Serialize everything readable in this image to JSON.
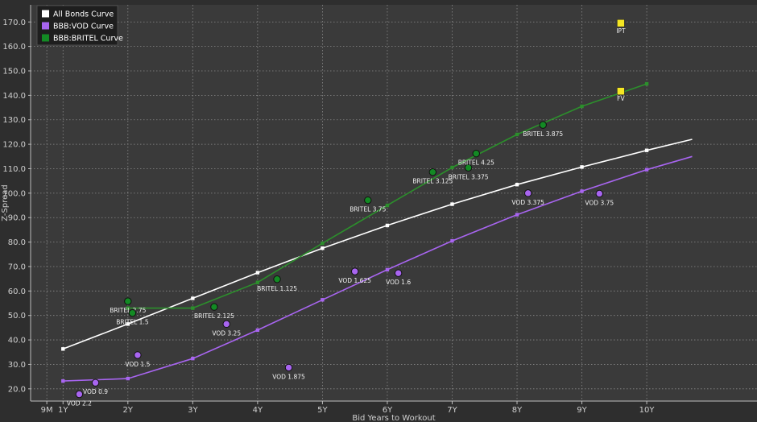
{
  "colors": {
    "background": "#2e2e2e",
    "plot_background": "#3a3a3a",
    "grid": "#8a8a8a",
    "text": "#d0d0d0",
    "all_bonds": "#ffffff",
    "vod": "#a865f0",
    "britel": "#138a24",
    "britel_line": "#2c8f2c",
    "highlight": "#f5e623"
  },
  "chart_data": {
    "type": "scatter",
    "ylabel": "Z-Spread",
    "xlabel": "Bid Years to Workout",
    "ylim": [
      15,
      177
    ],
    "xlim": [
      -0.5,
      10.7
    ],
    "x_ticks": [
      {
        "x": -0.25,
        "label": "9M"
      },
      {
        "x": 0,
        "label": "1Y"
      },
      {
        "x": 1,
        "label": "2Y"
      },
      {
        "x": 2,
        "label": "3Y"
      },
      {
        "x": 3,
        "label": "4Y"
      },
      {
        "x": 4,
        "label": "5Y"
      },
      {
        "x": 5,
        "label": "6Y"
      },
      {
        "x": 6,
        "label": "7Y"
      },
      {
        "x": 7,
        "label": "8Y"
      },
      {
        "x": 8,
        "label": "9Y"
      },
      {
        "x": 9,
        "label": "10Y"
      }
    ],
    "y_ticks": [
      {
        "y": 20,
        "label": "20.0"
      },
      {
        "y": 30,
        "label": "30.0"
      },
      {
        "y": 40,
        "label": "40.0"
      },
      {
        "y": 50,
        "label": "50.0"
      },
      {
        "y": 60,
        "label": "60.0"
      },
      {
        "y": 70,
        "label": "70.0"
      },
      {
        "y": 80,
        "label": "80.0"
      },
      {
        "y": 90,
        "label": "90.0"
      },
      {
        "y": 100,
        "label": "100.0"
      },
      {
        "y": 110,
        "label": "110.0"
      },
      {
        "y": 120,
        "label": "120.0"
      },
      {
        "y": 130,
        "label": "130.0"
      },
      {
        "y": 140,
        "label": "140.0"
      },
      {
        "y": 150,
        "label": "150.0"
      },
      {
        "y": 160,
        "label": "160.0"
      },
      {
        "y": 170,
        "label": "170.0"
      }
    ],
    "grid": true,
    "legend": {
      "placement": "top-left",
      "entries": [
        {
          "label": "All Bonds Curve",
          "color": "#ffffff"
        },
        {
          "label": "BBB:VOD Curve",
          "color": "#a865f0"
        },
        {
          "label": "BBB:BRITEL Curve",
          "color": "#138a24"
        }
      ]
    },
    "curves": [
      {
        "name": "All Bonds Curve",
        "color": "#ffffff",
        "points": [
          [
            0,
            36.3
          ],
          [
            1,
            46.5
          ],
          [
            2,
            57
          ],
          [
            3,
            67.5
          ],
          [
            4,
            77.5
          ],
          [
            5,
            86.8
          ],
          [
            6,
            95.5
          ],
          [
            7,
            103.5
          ],
          [
            8,
            110.7
          ],
          [
            9,
            117.5
          ],
          [
            9.7,
            122
          ]
        ]
      },
      {
        "name": "BBB:VOD Curve",
        "color": "#a865f0",
        "points": [
          [
            0,
            23.2
          ],
          [
            1,
            24.2
          ],
          [
            2,
            32.4
          ],
          [
            3,
            44
          ],
          [
            4,
            56.4
          ],
          [
            5,
            68.7
          ],
          [
            6,
            80.5
          ],
          [
            7,
            91.2
          ],
          [
            8,
            100.8
          ],
          [
            9,
            109.6
          ],
          [
            9.7,
            115
          ]
        ]
      },
      {
        "name": "BBB:BRITEL Curve",
        "color": "#2c8f2c",
        "points": [
          [
            1,
            53
          ],
          [
            2,
            53
          ],
          [
            3,
            63.5
          ],
          [
            4,
            79.5
          ],
          [
            5,
            95
          ],
          [
            6,
            110.5
          ],
          [
            7,
            124
          ],
          [
            8,
            135.5
          ],
          [
            9,
            144.7
          ]
        ]
      }
    ],
    "bonds": [
      {
        "series": "VOD",
        "label": "VOD 2.2",
        "x": 0.25,
        "y": 17.8
      },
      {
        "series": "VOD",
        "label": "VOD 0.9",
        "x": 0.5,
        "y": 22.5
      },
      {
        "series": "VOD",
        "label": "VOD 1.5",
        "x": 1.15,
        "y": 33.8
      },
      {
        "series": "VOD",
        "label": "VOD 3.25",
        "x": 2.52,
        "y": 46.5
      },
      {
        "series": "VOD",
        "label": "VOD 1.875",
        "x": 3.48,
        "y": 28.7
      },
      {
        "series": "VOD",
        "label": "VOD 1.625",
        "x": 4.5,
        "y": 68
      },
      {
        "series": "VOD",
        "label": "VOD 1.6",
        "x": 5.17,
        "y": 67.3
      },
      {
        "series": "VOD",
        "label": "VOD 3.375",
        "x": 7.17,
        "y": 100
      },
      {
        "series": "VOD",
        "label": "VOD 3.75",
        "x": 8.27,
        "y": 99.8
      },
      {
        "series": "BRITEL",
        "label": "BRITEL 2.75",
        "x": 1.0,
        "y": 55.8
      },
      {
        "series": "BRITEL",
        "label": "BRITEL 1.5",
        "x": 1.07,
        "y": 51
      },
      {
        "series": "BRITEL",
        "label": "BRITEL 2.125",
        "x": 2.33,
        "y": 53.5
      },
      {
        "series": "BRITEL",
        "label": "BRITEL 1.125",
        "x": 3.3,
        "y": 64.8
      },
      {
        "series": "BRITEL",
        "label": "BRITEL 3.75",
        "x": 4.7,
        "y": 97.1
      },
      {
        "series": "BRITEL",
        "label": "BRITEL 3.125",
        "x": 5.7,
        "y": 108.6
      },
      {
        "series": "BRITEL",
        "label": "BRITEL 3.375",
        "x": 6.25,
        "y": 110.4
      },
      {
        "series": "BRITEL",
        "label": "BRITEL 4.25",
        "x": 6.37,
        "y": 116.2
      },
      {
        "series": "BRITEL",
        "label": "BRITEL 3.875",
        "x": 7.4,
        "y": 127.9
      }
    ],
    "highlights": [
      {
        "label": "IPT",
        "x": 8.6,
        "y": 169.5
      },
      {
        "label": "FV",
        "x": 8.6,
        "y": 141.7
      }
    ]
  }
}
